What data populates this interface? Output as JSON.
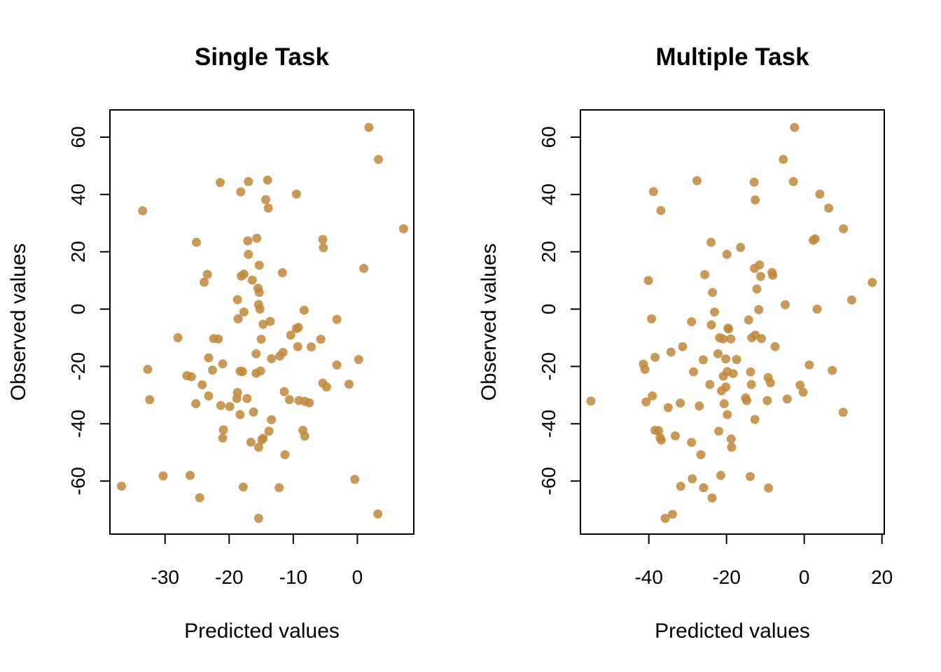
{
  "chart_data": [
    {
      "type": "scatter",
      "title": "Single Task",
      "xlabel": "Predicted values",
      "ylabel": "Observed values",
      "xlim": [
        -38.6,
        8.8
      ],
      "ylim": [
        -78.5,
        69.5
      ],
      "xticks": [
        -30,
        -20,
        -10,
        0
      ],
      "yticks": [
        -60,
        -40,
        -20,
        0,
        20,
        40,
        60
      ],
      "point_color": "#c0883a",
      "grid": false,
      "legend": "none",
      "series": [
        {
          "points": [
            [
              -33.5,
              34.3
            ],
            [
              1.8,
              63.4
            ],
            [
              3.3,
              52.2
            ],
            [
              7.2,
              28.0
            ],
            [
              1.0,
              14.2
            ],
            [
              -21.4,
              44.2
            ],
            [
              -17.0,
              44.5
            ],
            [
              -14.0,
              45.0
            ],
            [
              -18.2,
              40.9
            ],
            [
              -9.5,
              40.1
            ],
            [
              -14.3,
              38.2
            ],
            [
              -13.9,
              35.2
            ],
            [
              -25.1,
              23.3
            ],
            [
              -15.7,
              24.7
            ],
            [
              -17.1,
              23.8
            ],
            [
              -5.4,
              24.3
            ],
            [
              -5.3,
              21.4
            ],
            [
              -17.0,
              19.1
            ],
            [
              -15.3,
              15.3
            ],
            [
              -23.4,
              12.1
            ],
            [
              -17.7,
              12.2
            ],
            [
              -18.1,
              11.5
            ],
            [
              -11.7,
              12.7
            ],
            [
              -23.9,
              9.4
            ],
            [
              -16.4,
              10.1
            ],
            [
              -15.5,
              7.3
            ],
            [
              -15.3,
              5.8
            ],
            [
              -18.7,
              3.3
            ],
            [
              -15.4,
              1.6
            ],
            [
              -15.2,
              0.0
            ],
            [
              -17.7,
              -1.0
            ],
            [
              -8.3,
              -0.4
            ],
            [
              -18.6,
              -3.4
            ],
            [
              -14.7,
              -5.3
            ],
            [
              -13.6,
              -4.3
            ],
            [
              -3.2,
              -3.6
            ],
            [
              -9.2,
              -6.4
            ],
            [
              -9.5,
              -6.8
            ],
            [
              -10.4,
              -9.1
            ],
            [
              -28.0,
              -10.0
            ],
            [
              -22.4,
              -10.3
            ],
            [
              -21.7,
              -10.4
            ],
            [
              -15.0,
              -10.5
            ],
            [
              -5.7,
              -10.5
            ],
            [
              -9.3,
              -13.1
            ],
            [
              -7.2,
              -13.2
            ],
            [
              -23.2,
              -17.0
            ],
            [
              -21.0,
              -19.1
            ],
            [
              -15.8,
              -15.6
            ],
            [
              -11.6,
              -15.1
            ],
            [
              -12.1,
              -16.4
            ],
            [
              -13.4,
              -17.3
            ],
            [
              -3.2,
              -19.5
            ],
            [
              0.2,
              -17.6
            ],
            [
              -32.7,
              -21.0
            ],
            [
              -22.6,
              -21.3
            ],
            [
              -18.3,
              -21.7
            ],
            [
              -17.9,
              -21.8
            ],
            [
              -15.1,
              -21.6
            ],
            [
              -15.8,
              -22.4
            ],
            [
              -26.6,
              -23.2
            ],
            [
              -25.9,
              -23.6
            ],
            [
              -24.2,
              -26.4
            ],
            [
              -5.4,
              -25.8
            ],
            [
              -4.8,
              -27.2
            ],
            [
              -1.3,
              -26.2
            ],
            [
              -11.4,
              -28.8
            ],
            [
              -23.2,
              -30.3
            ],
            [
              -18.7,
              -29.1
            ],
            [
              -18.8,
              -31.2
            ],
            [
              -17.2,
              -31.2
            ],
            [
              -10.6,
              -31.6
            ],
            [
              -9.1,
              -31.9
            ],
            [
              -8.2,
              -32.2
            ],
            [
              -7.5,
              -32.7
            ],
            [
              -32.4,
              -31.6
            ],
            [
              -25.2,
              -33.0
            ],
            [
              -21.3,
              -33.6
            ],
            [
              -19.9,
              -34.0
            ],
            [
              -16.2,
              -35.9
            ],
            [
              -18.3,
              -36.8
            ],
            [
              -13.4,
              -38.6
            ],
            [
              -20.9,
              -42.1
            ],
            [
              -13.8,
              -42.6
            ],
            [
              -8.5,
              -42.3
            ],
            [
              -8.2,
              -44.3
            ],
            [
              -21.0,
              -45.0
            ],
            [
              -14.7,
              -45.1
            ],
            [
              -16.6,
              -46.4
            ],
            [
              -14.9,
              -45.6
            ],
            [
              -15.4,
              -48.2
            ],
            [
              -11.3,
              -50.8
            ],
            [
              -30.3,
              -58.2
            ],
            [
              -26.1,
              -58.0
            ],
            [
              -0.4,
              -59.4
            ],
            [
              -36.8,
              -61.8
            ],
            [
              -17.8,
              -62.1
            ],
            [
              -12.2,
              -62.3
            ],
            [
              -24.6,
              -65.8
            ],
            [
              3.2,
              -71.5
            ],
            [
              -15.4,
              -73.0
            ]
          ]
        }
      ]
    },
    {
      "type": "scatter",
      "title": "Multiple Task",
      "xlabel": "Predicted values",
      "ylabel": "Observed values",
      "xlim": [
        -57.6,
        20.6
      ],
      "ylim": [
        -78.5,
        69.5
      ],
      "xticks": [
        -40,
        -20,
        0,
        20
      ],
      "yticks": [
        -60,
        -40,
        -20,
        0,
        20,
        40,
        60
      ],
      "point_color": "#c0883a",
      "grid": false,
      "legend": "none",
      "series": [
        {
          "points": [
            [
              -2.5,
              63.4
            ],
            [
              -5.4,
              52.2
            ],
            [
              -27.6,
              44.8
            ],
            [
              -12.9,
              44.3
            ],
            [
              -2.8,
              44.5
            ],
            [
              -38.8,
              41.0
            ],
            [
              4.0,
              40.1
            ],
            [
              -12.6,
              38.1
            ],
            [
              -36.9,
              34.4
            ],
            [
              6.3,
              35.2
            ],
            [
              10.1,
              28.0
            ],
            [
              2.3,
              24.0
            ],
            [
              2.8,
              24.5
            ],
            [
              -24.0,
              23.3
            ],
            [
              -16.4,
              21.5
            ],
            [
              -19.9,
              19.1
            ],
            [
              -11.5,
              15.4
            ],
            [
              -12.8,
              14.2
            ],
            [
              -25.6,
              12.0
            ],
            [
              -8.3,
              12.8
            ],
            [
              -8.1,
              11.8
            ],
            [
              -11.2,
              11.4
            ],
            [
              -40.1,
              10.0
            ],
            [
              17.5,
              9.3
            ],
            [
              -12.2,
              7.0
            ],
            [
              -23.6,
              5.8
            ],
            [
              12.2,
              3.2
            ],
            [
              -4.9,
              1.5
            ],
            [
              -23.1,
              -1.0
            ],
            [
              -11.7,
              -0.2
            ],
            [
              3.3,
              0.0
            ],
            [
              -39.3,
              -3.4
            ],
            [
              -29.0,
              -4.4
            ],
            [
              -23.9,
              -5.5
            ],
            [
              -14.3,
              -3.8
            ],
            [
              -19.6,
              -6.7
            ],
            [
              -19.5,
              -6.9
            ],
            [
              -21.8,
              -10.0
            ],
            [
              -20.9,
              -10.4
            ],
            [
              -18.9,
              -10.4
            ],
            [
              -13.5,
              -10.0
            ],
            [
              -12.6,
              -9.1
            ],
            [
              -11.0,
              -10.3
            ],
            [
              -7.5,
              -13.1
            ],
            [
              -31.3,
              -13.1
            ],
            [
              -34.3,
              -15.0
            ],
            [
              -22.2,
              -15.6
            ],
            [
              -38.4,
              -16.8
            ],
            [
              -26.0,
              -17.7
            ],
            [
              -20.2,
              -17.4
            ],
            [
              -17.4,
              -17.6
            ],
            [
              -41.4,
              -19.2
            ],
            [
              -41.0,
              -21.0
            ],
            [
              -28.5,
              -21.9
            ],
            [
              -19.8,
              -21.8
            ],
            [
              -18.3,
              -22.5
            ],
            [
              -13.8,
              -21.9
            ],
            [
              -20.8,
              -23.4
            ],
            [
              -9.3,
              -23.9
            ],
            [
              1.3,
              -19.5
            ],
            [
              7.2,
              -21.4
            ],
            [
              -24.3,
              -26.3
            ],
            [
              -20.2,
              -27.2
            ],
            [
              -21.3,
              -28.5
            ],
            [
              -13.6,
              -26.3
            ],
            [
              -8.7,
              -25.7
            ],
            [
              -1.1,
              -26.5
            ],
            [
              -0.3,
              -29.0
            ],
            [
              -39.1,
              -30.3
            ],
            [
              -54.9,
              -32.1
            ],
            [
              -40.7,
              -32.4
            ],
            [
              -35.0,
              -34.4
            ],
            [
              -31.9,
              -32.8
            ],
            [
              -27.0,
              -33.8
            ],
            [
              -20.6,
              -33.0
            ],
            [
              -15.1,
              -31.0
            ],
            [
              -14.8,
              -31.9
            ],
            [
              -9.5,
              -31.9
            ],
            [
              -4.4,
              -31.4
            ],
            [
              -19.8,
              -36.8
            ],
            [
              -12.7,
              -38.5
            ],
            [
              10.0,
              -36.0
            ],
            [
              -38.4,
              -42.3
            ],
            [
              -37.5,
              -42.4
            ],
            [
              -22.0,
              -42.6
            ],
            [
              -37.1,
              -44.9
            ],
            [
              -36.8,
              -45.7
            ],
            [
              -33.2,
              -44.2
            ],
            [
              -29.0,
              -46.5
            ],
            [
              -18.8,
              -45.3
            ],
            [
              -18.7,
              -48.2
            ],
            [
              -26.6,
              -50.8
            ],
            [
              -21.5,
              -58.0
            ],
            [
              -13.9,
              -58.4
            ],
            [
              -28.8,
              -59.2
            ],
            [
              -31.8,
              -61.8
            ],
            [
              -25.9,
              -62.3
            ],
            [
              -9.2,
              -62.4
            ],
            [
              -23.7,
              -65.9
            ],
            [
              -33.9,
              -71.6
            ],
            [
              -35.8,
              -73.0
            ]
          ]
        }
      ]
    }
  ]
}
